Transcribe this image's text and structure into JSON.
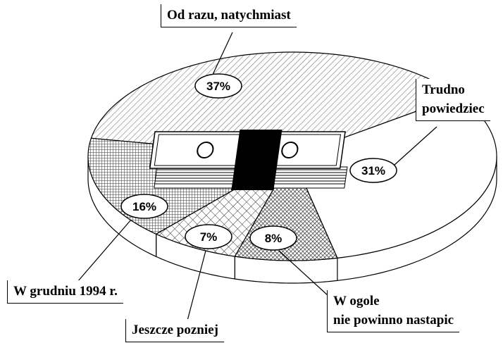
{
  "chart_data": {
    "type": "pie",
    "categories": [
      "Od razu, natychmiast",
      "Trudno\npowiedziec",
      "W ogole\nnie powinno nastapic",
      "Jeszcze pozniej",
      "W grudniu 1994 r."
    ],
    "values": [
      37,
      31,
      8,
      7,
      16
    ],
    "value_labels": [
      "37%",
      "31%",
      "8%",
      "7%",
      "16%"
    ]
  }
}
